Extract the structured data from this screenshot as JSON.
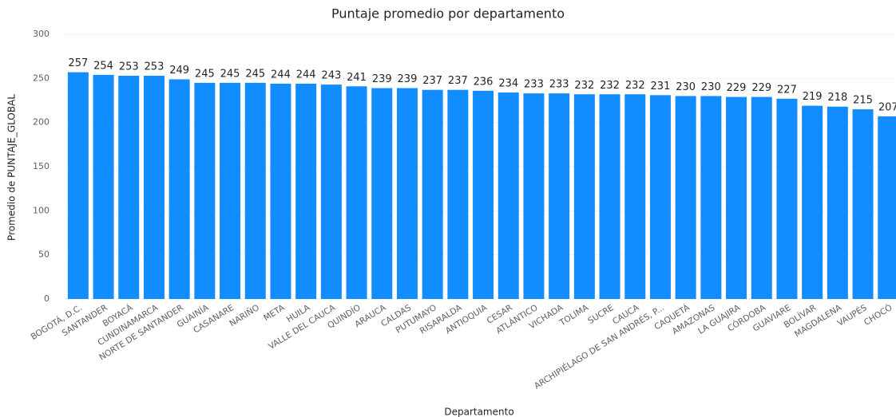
{
  "chart_data": {
    "type": "bar",
    "title": "Puntaje promedio por departamento",
    "x_label": "Departamento",
    "y_label": "Promedio de PUNTAJE_GLOBAL",
    "categories": [
      "BOGOTÁ, D.C.",
      "SANTANDER",
      "BOYACÁ",
      "CUNDINAMARCA",
      "NORTE DE SANTANDER",
      "GUAINÍA",
      "CASANARE",
      "NARIÑO",
      "META",
      "HUILA",
      "VALLE DEL CAUCA",
      "QUINDÍO",
      "ARAUCA",
      "CALDAS",
      "PUTUMAYO",
      "RISARALDA",
      "ANTIOQUIA",
      "CESAR",
      "ATLÁNTICO",
      "VICHADA",
      "TOLIMA",
      "SUCRE",
      "CAUCA",
      "ARCHIPIÉLAGO DE SAN ANDRÉS, P...",
      "CAQUETÁ",
      "AMAZONAS",
      "LA GUAJIRA",
      "CÓRDOBA",
      "GUAVIARE",
      "BOLÍVAR",
      "MAGDALENA",
      "VAUPÉS",
      "CHOCÓ"
    ],
    "values": [
      257,
      254,
      253,
      253,
      249,
      245,
      245,
      245,
      244,
      244,
      243,
      241,
      239,
      239,
      237,
      237,
      236,
      234,
      233,
      233,
      232,
      232,
      232,
      231,
      230,
      230,
      229,
      229,
      227,
      219,
      218,
      215,
      207
    ],
    "color": "#118dff",
    "ylim": [
      0,
      300
    ],
    "yticks": [
      0,
      50,
      100,
      150,
      200,
      250,
      300
    ],
    "grid": true
  }
}
